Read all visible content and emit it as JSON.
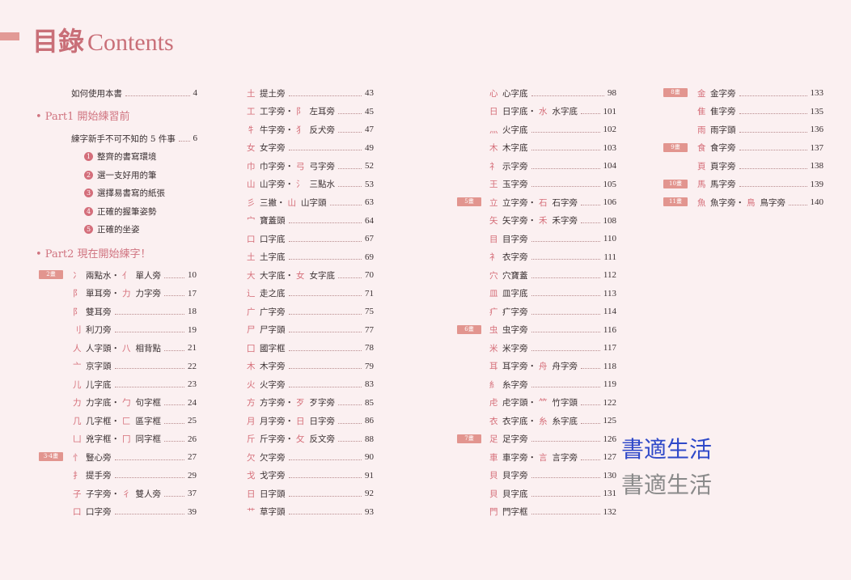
{
  "title": {
    "zh": "目錄",
    "en": "Contents"
  },
  "col1_top": {
    "intro": {
      "label": "如何使用本書",
      "page": "4"
    },
    "part1": "• Part1 開始練習前",
    "five": {
      "label": "練字新手不可不知的 5 件事",
      "page": "6"
    },
    "items": [
      {
        "n": "1",
        "label": "整齊的書寫環境"
      },
      {
        "n": "2",
        "label": "選一支好用的筆"
      },
      {
        "n": "3",
        "label": "選擇易書寫的紙張"
      },
      {
        "n": "4",
        "label": "正確的握筆姿勢"
      },
      {
        "n": "5",
        "label": "正確的坐姿"
      }
    ],
    "part2": "• Part2 現在開始練字！"
  },
  "columns": [
    [
      {
        "badge": "2畫",
        "r": "冫",
        "l": "兩點水・",
        "r2": "亻",
        "l2": "單人旁",
        "p": "10"
      },
      {
        "r": "阝",
        "l": "單耳旁・",
        "r2": "力",
        "l2": "力字旁",
        "p": "17"
      },
      {
        "r": "阝",
        "l": "雙耳旁",
        "p": "18"
      },
      {
        "r": "刂",
        "l": "利刀旁",
        "p": "19"
      },
      {
        "r": "人",
        "l": "人字頭・",
        "r2": "八",
        "l2": "相背點",
        "p": "21"
      },
      {
        "r": "亠",
        "l": "京字頭",
        "p": "22"
      },
      {
        "r": "儿",
        "l": "儿字底",
        "p": "23"
      },
      {
        "r": "力",
        "l": "力字底・",
        "r2": "勹",
        "l2": "句字框",
        "p": "24"
      },
      {
        "r": "几",
        "l": "几字框・",
        "r2": "匚",
        "l2": "區字框",
        "p": "25"
      },
      {
        "r": "凵",
        "l": "兇字框・",
        "r2": "冂",
        "l2": "同字框",
        "p": "26"
      },
      {
        "badge": "3-4畫",
        "r": "忄",
        "l": "豎心旁",
        "p": "27"
      },
      {
        "r": "扌",
        "l": "提手旁",
        "p": "29"
      },
      {
        "r": "子",
        "l": "子字旁・",
        "r2": "彳",
        "l2": "雙人旁",
        "p": "37"
      },
      {
        "r": "口",
        "l": "口字旁",
        "p": "39"
      }
    ],
    [
      {
        "r": "土",
        "l": "提土旁",
        "p": "43"
      },
      {
        "r": "工",
        "l": "工字旁・",
        "r2": "阝",
        "l2": "左耳旁",
        "p": "45"
      },
      {
        "r": "牜",
        "l": "牛字旁・",
        "r2": "犭",
        "l2": "反犬旁",
        "p": "47"
      },
      {
        "r": "女",
        "l": "女字旁",
        "p": "49"
      },
      {
        "r": "巾",
        "l": "巾字旁・",
        "r2": "弓",
        "l2": "弓字旁",
        "p": "52"
      },
      {
        "r": "山",
        "l": "山字旁・",
        "r2": "氵",
        "l2": "三點水",
        "p": "53"
      },
      {
        "r": "彡",
        "l": "三撇・",
        "r2": "山",
        "l2": "山字頭",
        "p": "63"
      },
      {
        "r": "宀",
        "l": "寶蓋頭",
        "p": "64"
      },
      {
        "r": "口",
        "l": "口字底",
        "p": "67"
      },
      {
        "r": "土",
        "l": "土字底",
        "p": "69"
      },
      {
        "r": "大",
        "l": "大字底・",
        "r2": "女",
        "l2": "女字底",
        "p": "70"
      },
      {
        "r": "辶",
        "l": "走之底",
        "p": "71"
      },
      {
        "r": "广",
        "l": "广字旁",
        "p": "75"
      },
      {
        "r": "尸",
        "l": "尸字頭",
        "p": "77"
      },
      {
        "r": "囗",
        "l": "國字框",
        "p": "78"
      },
      {
        "r": "木",
        "l": "木字旁",
        "p": "79"
      },
      {
        "r": "火",
        "l": "火字旁",
        "p": "83"
      },
      {
        "r": "方",
        "l": "方字旁・",
        "r2": "歹",
        "l2": "歹字旁",
        "p": "85"
      },
      {
        "r": "月",
        "l": "月字旁・",
        "r2": "日",
        "l2": "日字旁",
        "p": "86"
      },
      {
        "r": "斤",
        "l": "斤字旁・",
        "r2": "攵",
        "l2": "反文旁",
        "p": "88"
      },
      {
        "r": "欠",
        "l": "欠字旁",
        "p": "90"
      },
      {
        "r": "戈",
        "l": "戈字旁",
        "p": "91"
      },
      {
        "r": "日",
        "l": "日字頭",
        "p": "92"
      },
      {
        "r": "艹",
        "l": "草字頭",
        "p": "93"
      }
    ],
    [
      {
        "r": "心",
        "l": "心字底",
        "p": "98"
      },
      {
        "r": "日",
        "l": "日字底・",
        "r2": "水",
        "l2": "水字底",
        "p": "101"
      },
      {
        "r": "灬",
        "l": "火字底",
        "p": "102"
      },
      {
        "r": "木",
        "l": "木字底",
        "p": "103"
      },
      {
        "r": "礻",
        "l": "示字旁",
        "p": "104"
      },
      {
        "r": "王",
        "l": "玉字旁",
        "p": "105"
      },
      {
        "badge": "5畫",
        "r": "立",
        "l": "立字旁・",
        "r2": "石",
        "l2": "石字旁",
        "p": "106"
      },
      {
        "r": "矢",
        "l": "矢字旁・",
        "r2": "禾",
        "l2": "禾字旁",
        "p": "108"
      },
      {
        "r": "目",
        "l": "目字旁",
        "p": "110"
      },
      {
        "r": "衤",
        "l": "衣字旁",
        "p": "111"
      },
      {
        "r": "穴",
        "l": "穴寶蓋",
        "p": "112"
      },
      {
        "r": "皿",
        "l": "皿字底",
        "p": "113"
      },
      {
        "r": "疒",
        "l": "疒字旁",
        "p": "114"
      },
      {
        "badge": "6畫",
        "r": "虫",
        "l": "虫字旁",
        "p": "116"
      },
      {
        "r": "米",
        "l": "米字旁",
        "p": "117"
      },
      {
        "r": "耳",
        "l": "耳字旁・",
        "r2": "舟",
        "l2": "舟字旁",
        "p": "118"
      },
      {
        "r": "糹",
        "l": "糸字旁",
        "p": "119"
      },
      {
        "r": "虍",
        "l": "虍字頭・",
        "r2": "⺮",
        "l2": "竹字頭",
        "p": "122"
      },
      {
        "r": "衣",
        "l": "衣字底・",
        "r2": "糸",
        "l2": "糸字底",
        "p": "125"
      },
      {
        "badge": "7畫",
        "r": "足",
        "l": "足字旁",
        "p": "126"
      },
      {
        "r": "車",
        "l": "車字旁・",
        "r2": "言",
        "l2": "言字旁",
        "p": "127"
      },
      {
        "r": "貝",
        "l": "貝字旁",
        "p": "130"
      },
      {
        "r": "貝",
        "l": "貝字底",
        "p": "131"
      },
      {
        "r": "門",
        "l": "門字框",
        "p": "132"
      }
    ],
    [
      {
        "badge": "8畫",
        "r": "金",
        "l": "金字旁",
        "p": "133"
      },
      {
        "r": "隹",
        "l": "隹字旁",
        "p": "135"
      },
      {
        "r": "雨",
        "l": "雨字頭",
        "p": "136"
      },
      {
        "badge": "9畫",
        "r": "食",
        "l": "食字旁",
        "p": "137"
      },
      {
        "r": "頁",
        "l": "頁字旁",
        "p": "138"
      },
      {
        "badge": "10畫",
        "r": "馬",
        "l": "馬字旁",
        "p": "139"
      },
      {
        "badge": "11畫",
        "r": "魚",
        "l": "魚字旁・",
        "r2": "鳥",
        "l2": "鳥字旁",
        "p": "140"
      }
    ]
  ],
  "watermark": {
    "text": "書適生活",
    "color1": "#2f49c9",
    "color2": "#8a8a8a"
  },
  "colors": {
    "accent": "#c96f78",
    "badge": "#e2958f"
  }
}
